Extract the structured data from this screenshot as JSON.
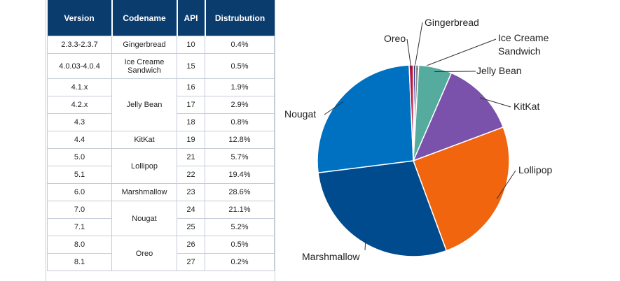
{
  "table": {
    "headers": [
      "Version",
      "Codename",
      "API",
      "Distrubution"
    ],
    "rows": [
      {
        "version": "2.3.3-2.3.7",
        "codename": "Gingerbread",
        "api": "10",
        "dist": "0.4%"
      },
      {
        "version": "4.0.03-4.0.4",
        "codename": "Ice Creame Sandwich",
        "api": "15",
        "dist": "0.5%"
      },
      {
        "version": "4.1.x",
        "codename": "Jelly Bean",
        "api": "16",
        "dist": "1.9%"
      },
      {
        "version": "4.2.x",
        "codename": "",
        "api": "17",
        "dist": "2.9%"
      },
      {
        "version": "4.3",
        "codename": "",
        "api": "18",
        "dist": "0.8%"
      },
      {
        "version": "4.4",
        "codename": "KitKat",
        "api": "19",
        "dist": "12.8%"
      },
      {
        "version": "5.0",
        "codename": "Lollipop",
        "api": "21",
        "dist": "5.7%"
      },
      {
        "version": "5.1",
        "codename": "",
        "api": "22",
        "dist": "19.4%"
      },
      {
        "version": "6.0",
        "codename": "Marshmallow",
        "api": "23",
        "dist": "28.6%"
      },
      {
        "version": "7.0",
        "codename": "Nougat",
        "api": "24",
        "dist": "21.1%"
      },
      {
        "version": "7.1",
        "codename": "",
        "api": "25",
        "dist": "5.2%"
      },
      {
        "version": "8.0",
        "codename": "Oreo",
        "api": "26",
        "dist": "0.5%"
      },
      {
        "version": "8.1",
        "codename": "",
        "api": "27",
        "dist": "0.2%"
      }
    ]
  },
  "chart_data": {
    "type": "pie",
    "slices": [
      {
        "label": "Gingerbread",
        "value": 0.4,
        "color": "#2b3a8f"
      },
      {
        "label": "Ice Creame Sandwich",
        "value": 0.5,
        "color": "#8a8a8a"
      },
      {
        "label": "Jelly Bean",
        "value": 5.6,
        "color": "#55ab9d"
      },
      {
        "label": "KitKat",
        "value": 12.8,
        "color": "#7b52ab"
      },
      {
        "label": "Lollipop",
        "value": 25.1,
        "color": "#f0650e"
      },
      {
        "label": "Marshmallow",
        "value": 28.6,
        "color": "#004b8d"
      },
      {
        "label": "Nougat",
        "value": 26.3,
        "color": "#0070c0"
      },
      {
        "label": "Oreo",
        "value": 0.7,
        "color": "#c0143c"
      }
    ],
    "label_lines": [
      [
        "Ice Creame",
        "Sandwich"
      ]
    ],
    "start_angle_deg": 0,
    "direction": "clockwise"
  }
}
